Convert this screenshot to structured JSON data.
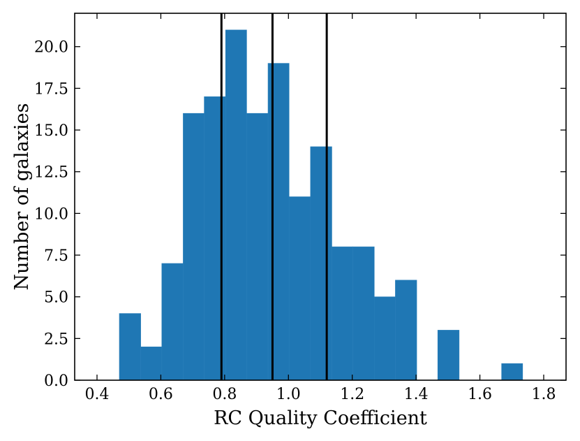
{
  "chart_data": {
    "type": "bar",
    "xlabel": "RC Quality Coefficient",
    "ylabel": "Number of galaxies",
    "xlim": [
      0.33,
      1.87
    ],
    "ylim": [
      0,
      22
    ],
    "x_ticks": [
      0.4,
      0.6,
      0.8,
      1.0,
      1.2,
      1.4,
      1.6,
      1.8
    ],
    "x_tick_labels": [
      "0.4",
      "0.6",
      "0.8",
      "1.0",
      "1.2",
      "1.4",
      "1.6",
      "1.8"
    ],
    "y_ticks": [
      0,
      2.5,
      5,
      7.5,
      10,
      12.5,
      15,
      17.5,
      20
    ],
    "y_tick_labels": [
      "0.0",
      "2.5",
      "5.0",
      "7.5",
      "10.0",
      "12.5",
      "15.0",
      "17.5",
      "20.0"
    ],
    "bin_width": 0.0665,
    "bins": [
      {
        "x0": 0.47,
        "x1": 0.537,
        "count": 4
      },
      {
        "x0": 0.537,
        "x1": 0.603,
        "count": 2
      },
      {
        "x0": 0.603,
        "x1": 0.67,
        "count": 7
      },
      {
        "x0": 0.67,
        "x1": 0.736,
        "count": 16
      },
      {
        "x0": 0.736,
        "x1": 0.803,
        "count": 17
      },
      {
        "x0": 0.803,
        "x1": 0.869,
        "count": 21
      },
      {
        "x0": 0.869,
        "x1": 0.936,
        "count": 16
      },
      {
        "x0": 0.936,
        "x1": 1.002,
        "count": 19
      },
      {
        "x0": 1.002,
        "x1": 1.069,
        "count": 11
      },
      {
        "x0": 1.069,
        "x1": 1.136,
        "count": 14
      },
      {
        "x0": 1.136,
        "x1": 1.202,
        "count": 8
      },
      {
        "x0": 1.202,
        "x1": 1.269,
        "count": 8
      },
      {
        "x0": 1.269,
        "x1": 1.335,
        "count": 5
      },
      {
        "x0": 1.335,
        "x1": 1.402,
        "count": 6
      },
      {
        "x0": 1.402,
        "x1": 1.468,
        "count": 0
      },
      {
        "x0": 1.468,
        "x1": 1.535,
        "count": 3
      },
      {
        "x0": 1.535,
        "x1": 1.601,
        "count": 0
      },
      {
        "x0": 1.601,
        "x1": 1.668,
        "count": 0
      },
      {
        "x0": 1.668,
        "x1": 1.734,
        "count": 1
      }
    ],
    "vertical_lines": [
      0.79,
      0.95,
      1.12
    ],
    "bar_color": "#1f77b4",
    "line_color": "#000000",
    "grid": false,
    "legend": "none"
  }
}
